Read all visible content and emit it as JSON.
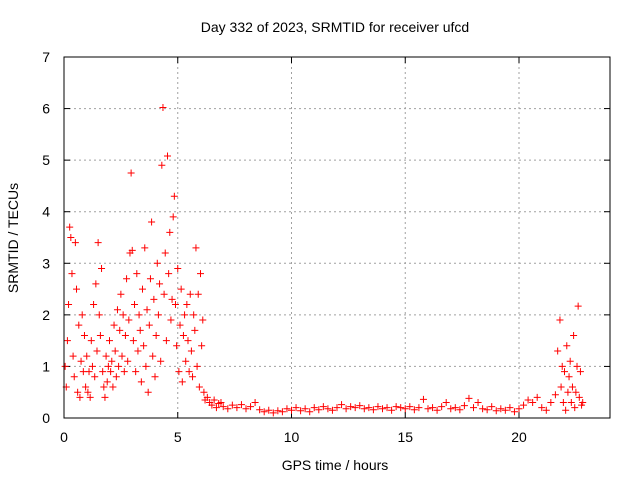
{
  "chart_data": {
    "type": "scatter",
    "title": "Day 332 of 2023, SRMTID for receiver ufcd",
    "xlabel": "GPS time / hours",
    "ylabel": "SRMTID / TECUs",
    "xlim": [
      0,
      24
    ],
    "ylim": [
      0,
      7
    ],
    "xticks": [
      0,
      5,
      10,
      15,
      20
    ],
    "yticks": [
      0,
      1,
      2,
      3,
      4,
      5,
      6,
      7
    ],
    "grid": true,
    "marker": "+",
    "color": "#ff0000",
    "series": [
      {
        "name": "SRMTID",
        "points": [
          [
            0.05,
            1.0
          ],
          [
            0.1,
            0.6
          ],
          [
            0.15,
            1.5
          ],
          [
            0.2,
            2.2
          ],
          [
            0.25,
            3.7
          ],
          [
            0.3,
            3.5
          ],
          [
            0.35,
            2.8
          ],
          [
            0.4,
            1.2
          ],
          [
            0.45,
            0.8
          ],
          [
            0.5,
            3.4
          ],
          [
            0.55,
            2.5
          ],
          [
            0.6,
            0.5
          ],
          [
            0.65,
            1.8
          ],
          [
            0.7,
            0.4
          ],
          [
            0.75,
            1.1
          ],
          [
            0.8,
            2.0
          ],
          [
            0.85,
            0.9
          ],
          [
            0.9,
            1.6
          ],
          [
            0.95,
            0.6
          ],
          [
            1.0,
            1.2
          ],
          [
            1.05,
            0.5
          ],
          [
            1.1,
            0.9
          ],
          [
            1.15,
            0.4
          ],
          [
            1.2,
            1.5
          ],
          [
            1.25,
            1.0
          ],
          [
            1.3,
            2.2
          ],
          [
            1.35,
            0.8
          ],
          [
            1.4,
            2.6
          ],
          [
            1.45,
            1.3
          ],
          [
            1.5,
            3.4
          ],
          [
            1.55,
            2.0
          ],
          [
            1.6,
            1.6
          ],
          [
            1.65,
            2.9
          ],
          [
            1.7,
            0.9
          ],
          [
            1.75,
            0.6
          ],
          [
            1.8,
            0.4
          ],
          [
            1.85,
            1.2
          ],
          [
            1.9,
            0.7
          ],
          [
            1.95,
            1.0
          ],
          [
            2.0,
            1.5
          ],
          [
            2.05,
            0.9
          ],
          [
            2.1,
            1.1
          ],
          [
            2.15,
            0.6
          ],
          [
            2.2,
            1.8
          ],
          [
            2.25,
            1.3
          ],
          [
            2.3,
            0.8
          ],
          [
            2.35,
            2.1
          ],
          [
            2.4,
            1.0
          ],
          [
            2.45,
            1.7
          ],
          [
            2.5,
            2.4
          ],
          [
            2.55,
            1.2
          ],
          [
            2.6,
            2.0
          ],
          [
            2.65,
            0.9
          ],
          [
            2.7,
            1.6
          ],
          [
            2.75,
            2.7
          ],
          [
            2.8,
            1.1
          ],
          [
            2.85,
            1.9
          ],
          [
            2.9,
            3.2
          ],
          [
            2.95,
            4.75
          ],
          [
            3.0,
            3.25
          ],
          [
            3.05,
            1.5
          ],
          [
            3.1,
            2.2
          ],
          [
            3.15,
            0.9
          ],
          [
            3.2,
            2.8
          ],
          [
            3.25,
            1.3
          ],
          [
            3.3,
            2.0
          ],
          [
            3.35,
            1.7
          ],
          [
            3.4,
            0.7
          ],
          [
            3.45,
            2.5
          ],
          [
            3.5,
            1.4
          ],
          [
            3.55,
            3.3
          ],
          [
            3.6,
            1.0
          ],
          [
            3.65,
            2.1
          ],
          [
            3.7,
            0.5
          ],
          [
            3.75,
            1.8
          ],
          [
            3.8,
            2.7
          ],
          [
            3.85,
            3.8
          ],
          [
            3.9,
            1.2
          ],
          [
            3.95,
            2.3
          ],
          [
            4.0,
            0.8
          ],
          [
            4.05,
            1.6
          ],
          [
            4.1,
            3.0
          ],
          [
            4.15,
            2.0
          ],
          [
            4.2,
            2.6
          ],
          [
            4.25,
            1.1
          ],
          [
            4.3,
            4.9
          ],
          [
            4.35,
            6.02
          ],
          [
            4.4,
            2.4
          ],
          [
            4.45,
            3.2
          ],
          [
            4.5,
            1.5
          ],
          [
            4.55,
            5.08
          ],
          [
            4.6,
            2.8
          ],
          [
            4.65,
            3.6
          ],
          [
            4.7,
            1.9
          ],
          [
            4.75,
            2.3
          ],
          [
            4.8,
            3.9
          ],
          [
            4.85,
            4.3
          ],
          [
            4.9,
            2.2
          ],
          [
            4.95,
            1.4
          ],
          [
            5.0,
            2.9
          ],
          [
            5.05,
            0.9
          ],
          [
            5.1,
            1.8
          ],
          [
            5.15,
            2.5
          ],
          [
            5.2,
            0.7
          ],
          [
            5.25,
            1.6
          ],
          [
            5.3,
            2.0
          ],
          [
            5.35,
            1.1
          ],
          [
            5.4,
            2.2
          ],
          [
            5.45,
            1.5
          ],
          [
            5.5,
            0.9
          ],
          [
            5.55,
            2.4
          ],
          [
            5.6,
            1.3
          ],
          [
            5.65,
            0.8
          ],
          [
            5.7,
            2.0
          ],
          [
            5.75,
            1.7
          ],
          [
            5.8,
            3.3
          ],
          [
            5.85,
            1.0
          ],
          [
            5.9,
            2.4
          ],
          [
            5.95,
            0.6
          ],
          [
            6.0,
            2.8
          ],
          [
            6.05,
            1.4
          ],
          [
            6.1,
            1.9
          ],
          [
            6.15,
            0.5
          ],
          [
            6.2,
            0.35
          ],
          [
            6.3,
            0.4
          ],
          [
            6.4,
            0.3
          ],
          [
            6.5,
            0.25
          ],
          [
            6.6,
            0.35
          ],
          [
            6.7,
            0.2
          ],
          [
            6.8,
            0.28
          ],
          [
            6.9,
            0.3
          ],
          [
            7.0,
            0.22
          ],
          [
            7.2,
            0.18
          ],
          [
            7.4,
            0.25
          ],
          [
            7.6,
            0.2
          ],
          [
            7.8,
            0.26
          ],
          [
            8.0,
            0.18
          ],
          [
            8.2,
            0.22
          ],
          [
            8.4,
            0.3
          ],
          [
            8.6,
            0.16
          ],
          [
            8.8,
            0.12
          ],
          [
            9.0,
            0.15
          ],
          [
            9.2,
            0.1
          ],
          [
            9.4,
            0.14
          ],
          [
            9.6,
            0.12
          ],
          [
            9.8,
            0.18
          ],
          [
            10.0,
            0.15
          ],
          [
            10.2,
            0.2
          ],
          [
            10.4,
            0.14
          ],
          [
            10.6,
            0.18
          ],
          [
            10.8,
            0.12
          ],
          [
            11.0,
            0.2
          ],
          [
            11.2,
            0.16
          ],
          [
            11.4,
            0.22
          ],
          [
            11.6,
            0.18
          ],
          [
            11.8,
            0.15
          ],
          [
            12.0,
            0.2
          ],
          [
            12.2,
            0.26
          ],
          [
            12.4,
            0.18
          ],
          [
            12.6,
            0.22
          ],
          [
            12.8,
            0.2
          ],
          [
            13.0,
            0.24
          ],
          [
            13.2,
            0.18
          ],
          [
            13.4,
            0.2
          ],
          [
            13.6,
            0.16
          ],
          [
            13.8,
            0.22
          ],
          [
            14.0,
            0.18
          ],
          [
            14.2,
            0.2
          ],
          [
            14.4,
            0.15
          ],
          [
            14.6,
            0.22
          ],
          [
            14.8,
            0.2
          ],
          [
            15.0,
            0.18
          ],
          [
            15.2,
            0.22
          ],
          [
            15.4,
            0.16
          ],
          [
            15.6,
            0.2
          ],
          [
            15.8,
            0.36
          ],
          [
            16.0,
            0.18
          ],
          [
            16.2,
            0.2
          ],
          [
            16.4,
            0.15
          ],
          [
            16.6,
            0.22
          ],
          [
            16.8,
            0.3
          ],
          [
            17.0,
            0.18
          ],
          [
            17.2,
            0.2
          ],
          [
            17.4,
            0.16
          ],
          [
            17.6,
            0.24
          ],
          [
            17.8,
            0.38
          ],
          [
            18.0,
            0.2
          ],
          [
            18.2,
            0.3
          ],
          [
            18.4,
            0.18
          ],
          [
            18.6,
            0.16
          ],
          [
            18.8,
            0.22
          ],
          [
            19.0,
            0.14
          ],
          [
            19.2,
            0.18
          ],
          [
            19.4,
            0.15
          ],
          [
            19.6,
            0.2
          ],
          [
            19.8,
            0.12
          ],
          [
            20.0,
            0.18
          ],
          [
            20.2,
            0.25
          ],
          [
            20.4,
            0.35
          ],
          [
            20.6,
            0.3
          ],
          [
            20.8,
            0.4
          ],
          [
            21.0,
            0.2
          ],
          [
            21.2,
            0.15
          ],
          [
            21.4,
            0.3
          ],
          [
            21.6,
            0.45
          ],
          [
            21.7,
            1.3
          ],
          [
            21.8,
            1.9
          ],
          [
            21.85,
            0.6
          ],
          [
            21.9,
            1.0
          ],
          [
            21.95,
            0.3
          ],
          [
            22.0,
            0.9
          ],
          [
            22.05,
            0.15
          ],
          [
            22.1,
            1.4
          ],
          [
            22.15,
            0.5
          ],
          [
            22.2,
            0.8
          ],
          [
            22.25,
            1.1
          ],
          [
            22.3,
            0.3
          ],
          [
            22.35,
            0.6
          ],
          [
            22.4,
            1.6
          ],
          [
            22.45,
            0.2
          ],
          [
            22.5,
            0.5
          ],
          [
            22.55,
            1.0
          ],
          [
            22.6,
            2.17
          ],
          [
            22.65,
            0.4
          ],
          [
            22.7,
            0.9
          ],
          [
            22.75,
            0.25
          ],
          [
            22.8,
            0.3
          ]
        ]
      }
    ]
  }
}
